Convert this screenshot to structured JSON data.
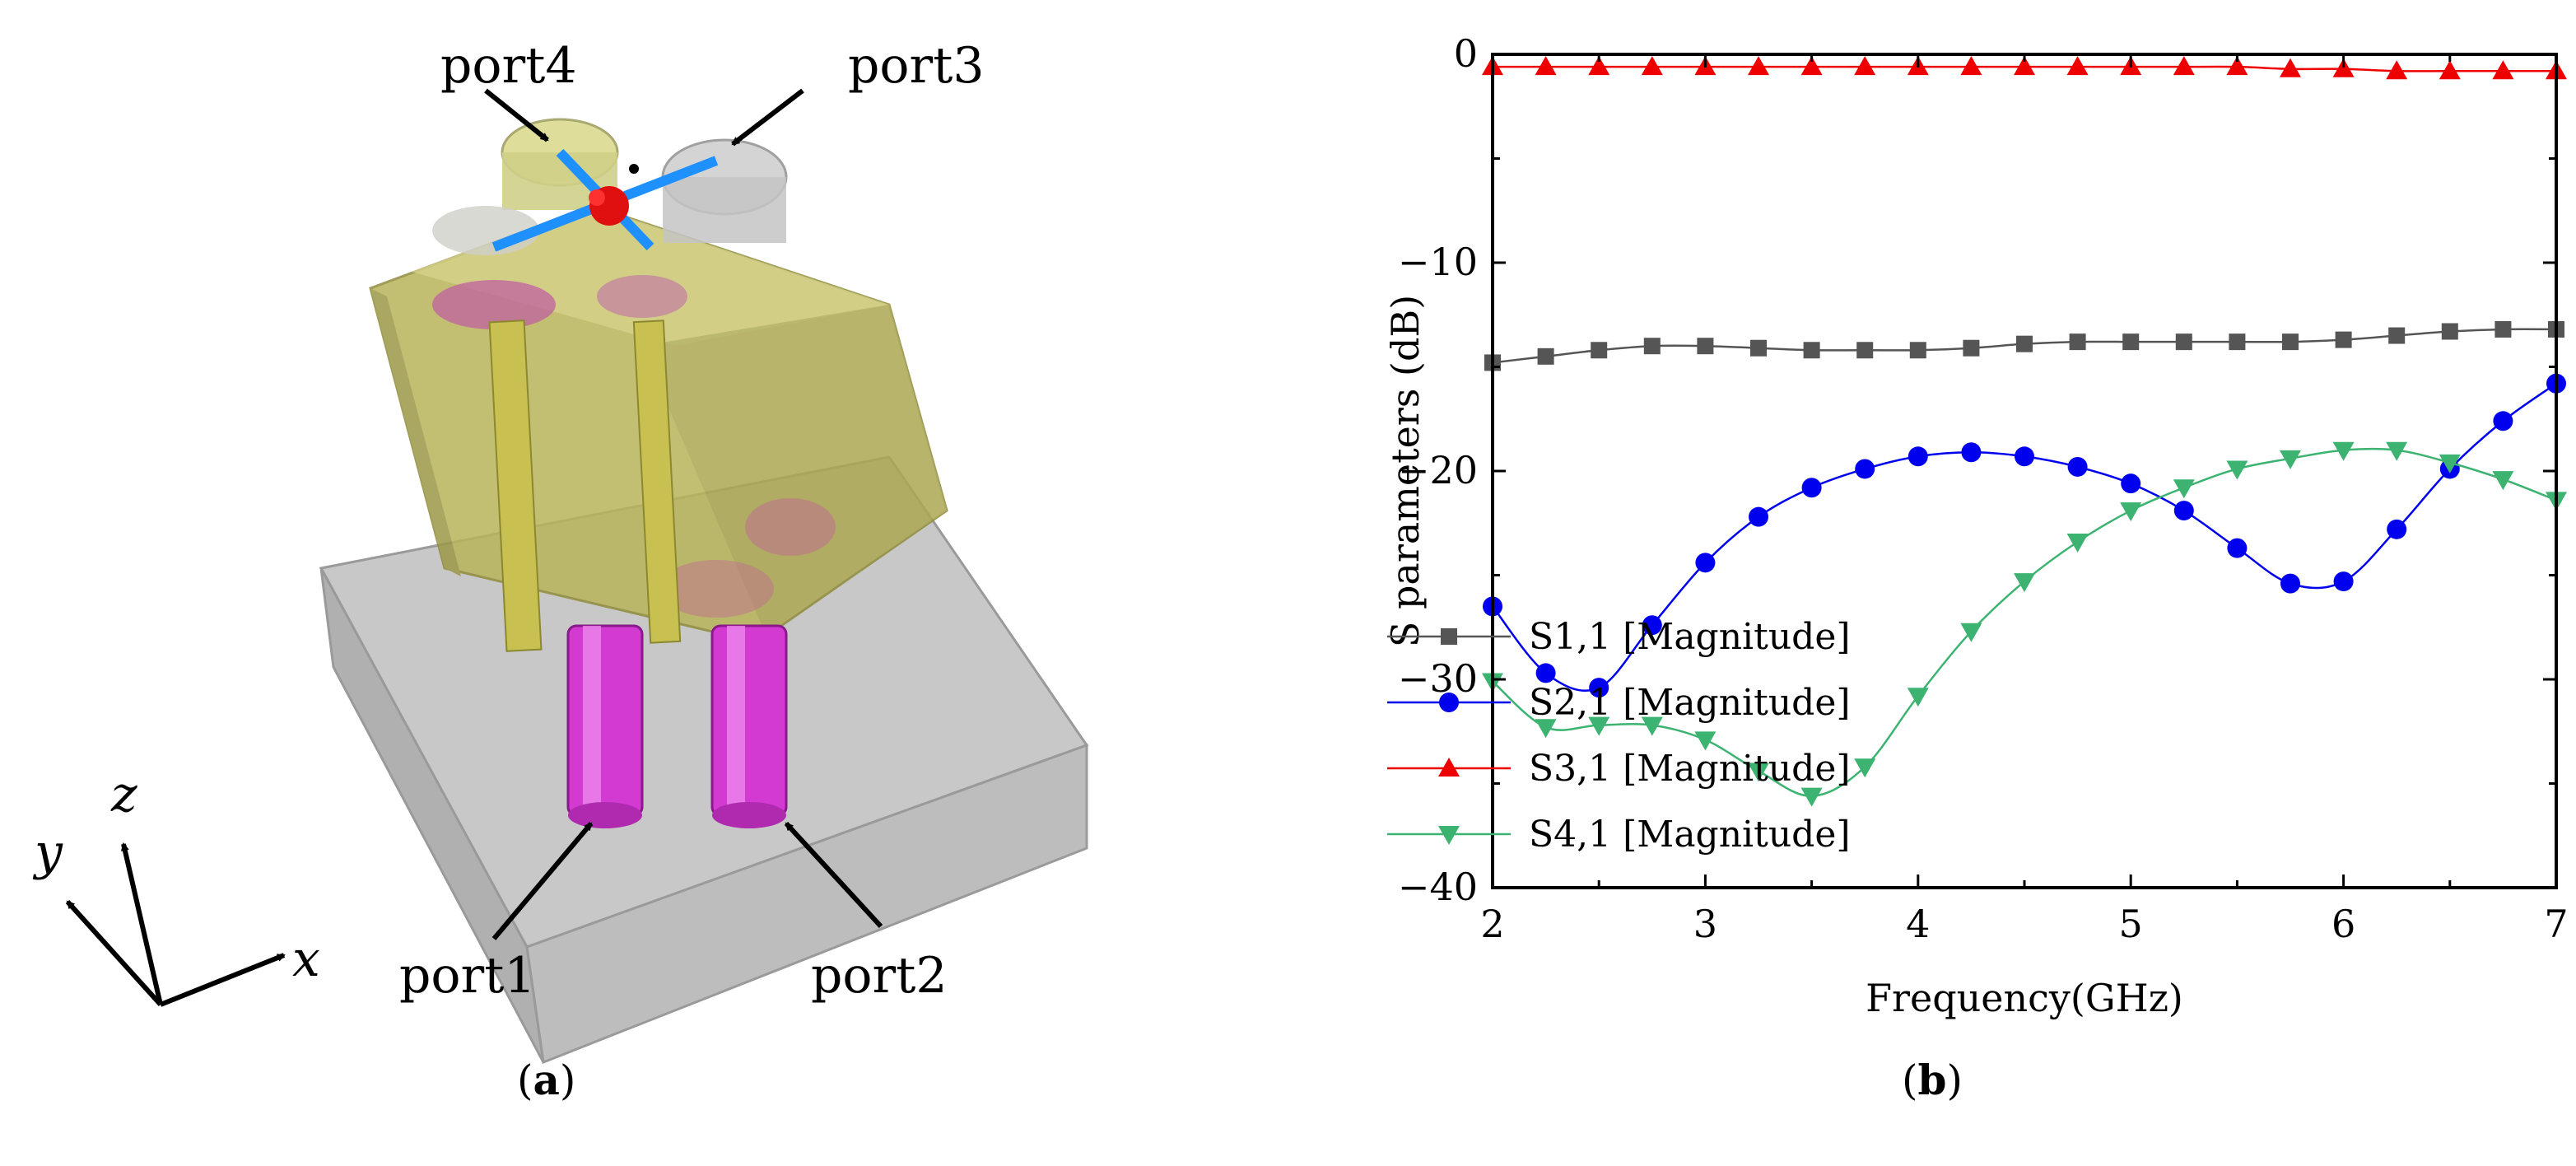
{
  "figure_a": {
    "caption_open": "(",
    "caption_letter": "a",
    "caption_close": ")",
    "port_labels": {
      "port1": "port1",
      "port2": "port2",
      "port3": "port3",
      "port4": "port4"
    },
    "axis_labels": {
      "x": "x",
      "y": "y",
      "z": "z"
    }
  },
  "figure_b": {
    "caption_open": "(",
    "caption_letter": "b",
    "caption_close": ")"
  },
  "chart_data": {
    "type": "line",
    "title": "",
    "xlabel": "Frequency(GHz)",
    "ylabel": "S parameters (dB)",
    "xlim": [
      2,
      7
    ],
    "ylim": [
      -40,
      0
    ],
    "xticks": [
      2,
      3,
      4,
      5,
      6,
      7
    ],
    "yticks": [
      0,
      -10,
      -20,
      -30,
      -40
    ],
    "ytick_labels": [
      "0",
      "−10",
      "−20",
      "−30",
      "−40"
    ],
    "legend_position": "bottom-right",
    "x": [
      2.0,
      2.25,
      2.5,
      2.75,
      3.0,
      3.25,
      3.5,
      3.75,
      4.0,
      4.25,
      4.5,
      4.75,
      5.0,
      5.25,
      5.5,
      5.75,
      6.0,
      6.25,
      6.5,
      6.75,
      7.0
    ],
    "series": [
      {
        "name": "S1,1 [Magnitude]",
        "color": "#555555",
        "marker": "square",
        "values": [
          -14.8,
          -14.5,
          -14.2,
          -14.0,
          -14.0,
          -14.1,
          -14.2,
          -14.2,
          -14.2,
          -14.1,
          -13.9,
          -13.8,
          -13.8,
          -13.8,
          -13.8,
          -13.8,
          -13.7,
          -13.5,
          -13.3,
          -13.2,
          -13.2
        ]
      },
      {
        "name": "S2,1 [Magnitude]",
        "color": "#0000ee",
        "marker": "circle",
        "values": [
          -26.5,
          -29.7,
          -30.4,
          -27.4,
          -24.4,
          -22.2,
          -20.8,
          -19.9,
          -19.3,
          -19.1,
          -19.3,
          -19.8,
          -20.6,
          -21.9,
          -23.7,
          -25.4,
          -25.3,
          -22.8,
          -19.9,
          -17.6,
          -15.8
        ]
      },
      {
        "name": "S3,1 [Magnitude]",
        "color": "#ee0000",
        "marker": "triangle-up",
        "values": [
          -0.6,
          -0.6,
          -0.6,
          -0.6,
          -0.6,
          -0.6,
          -0.6,
          -0.6,
          -0.6,
          -0.6,
          -0.6,
          -0.6,
          -0.6,
          -0.6,
          -0.6,
          -0.7,
          -0.7,
          -0.8,
          -0.8,
          -0.8,
          -0.8
        ]
      },
      {
        "name": "S4,1 [Magnitude]",
        "color": "#3cb371",
        "marker": "triangle-down",
        "values": [
          -30.1,
          -32.3,
          -32.2,
          -32.2,
          -32.9,
          -34.4,
          -35.6,
          -34.2,
          -30.8,
          -27.7,
          -25.3,
          -23.4,
          -21.9,
          -20.8,
          -19.9,
          -19.4,
          -19.0,
          -19.0,
          -19.6,
          -20.4,
          -21.4
        ]
      }
    ]
  }
}
